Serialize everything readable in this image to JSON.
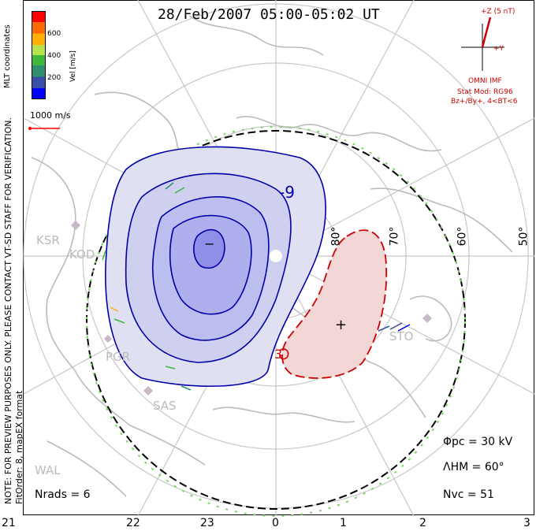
{
  "title": "28/Feb/2007 05:00-05:02 UT",
  "colorbar": {
    "label": "Vel [m/s]",
    "ticks": [
      "600",
      "400",
      "200"
    ],
    "colors": [
      "#0000ff",
      "#3a4fa8",
      "#2f8f6f",
      "#3db83d",
      "#b9e34a",
      "#ffb000",
      "#ff6a00",
      "#ff0000"
    ]
  },
  "coord_label": "MLT coordinates",
  "vector_scale": "1000 m/s",
  "imf": {
    "z_label": "+Z (5 nT)",
    "y_label": "+Y",
    "source": "OMNI IMF",
    "stat_mod": "Stat Mod: RG96",
    "condition": "Bz+/By+, 4<BT<6"
  },
  "note_line1": "NOTE: FOR PREVIEW PURPOSES ONLY. PLEASE CONTACT VT-SD STAFF FOR VERIFICATION.",
  "note_line2": "FitOrder: 8, mapEX format",
  "latitude_labels": [
    "80°",
    "70°",
    "60°",
    "50°"
  ],
  "stations": [
    "KSR",
    "KOD",
    "PGR",
    "SAS",
    "WAL",
    "STO"
  ],
  "contour_labels": {
    "negative_marker": "−",
    "positive_marker": "+",
    "label_neg": "-9",
    "label_pos": "3"
  },
  "stats": {
    "phi_pc": "Φpc = 30 kV",
    "lambda_hm": "ΛHM = 60°",
    "n_vc": "Nvc = 51",
    "n_rads": "Nrads = 6"
  },
  "mlt_ticks": [
    "21",
    "22",
    "23",
    "0",
    "1",
    "2",
    "3"
  ],
  "colors": {
    "neg_cell": "#8f8fe8",
    "pos_cell": "#f0c8c8",
    "neg_line": "#0000aa",
    "pos_line": "#cc0000",
    "coast": "#bbbbbb",
    "grid": "#c8c8c8"
  }
}
